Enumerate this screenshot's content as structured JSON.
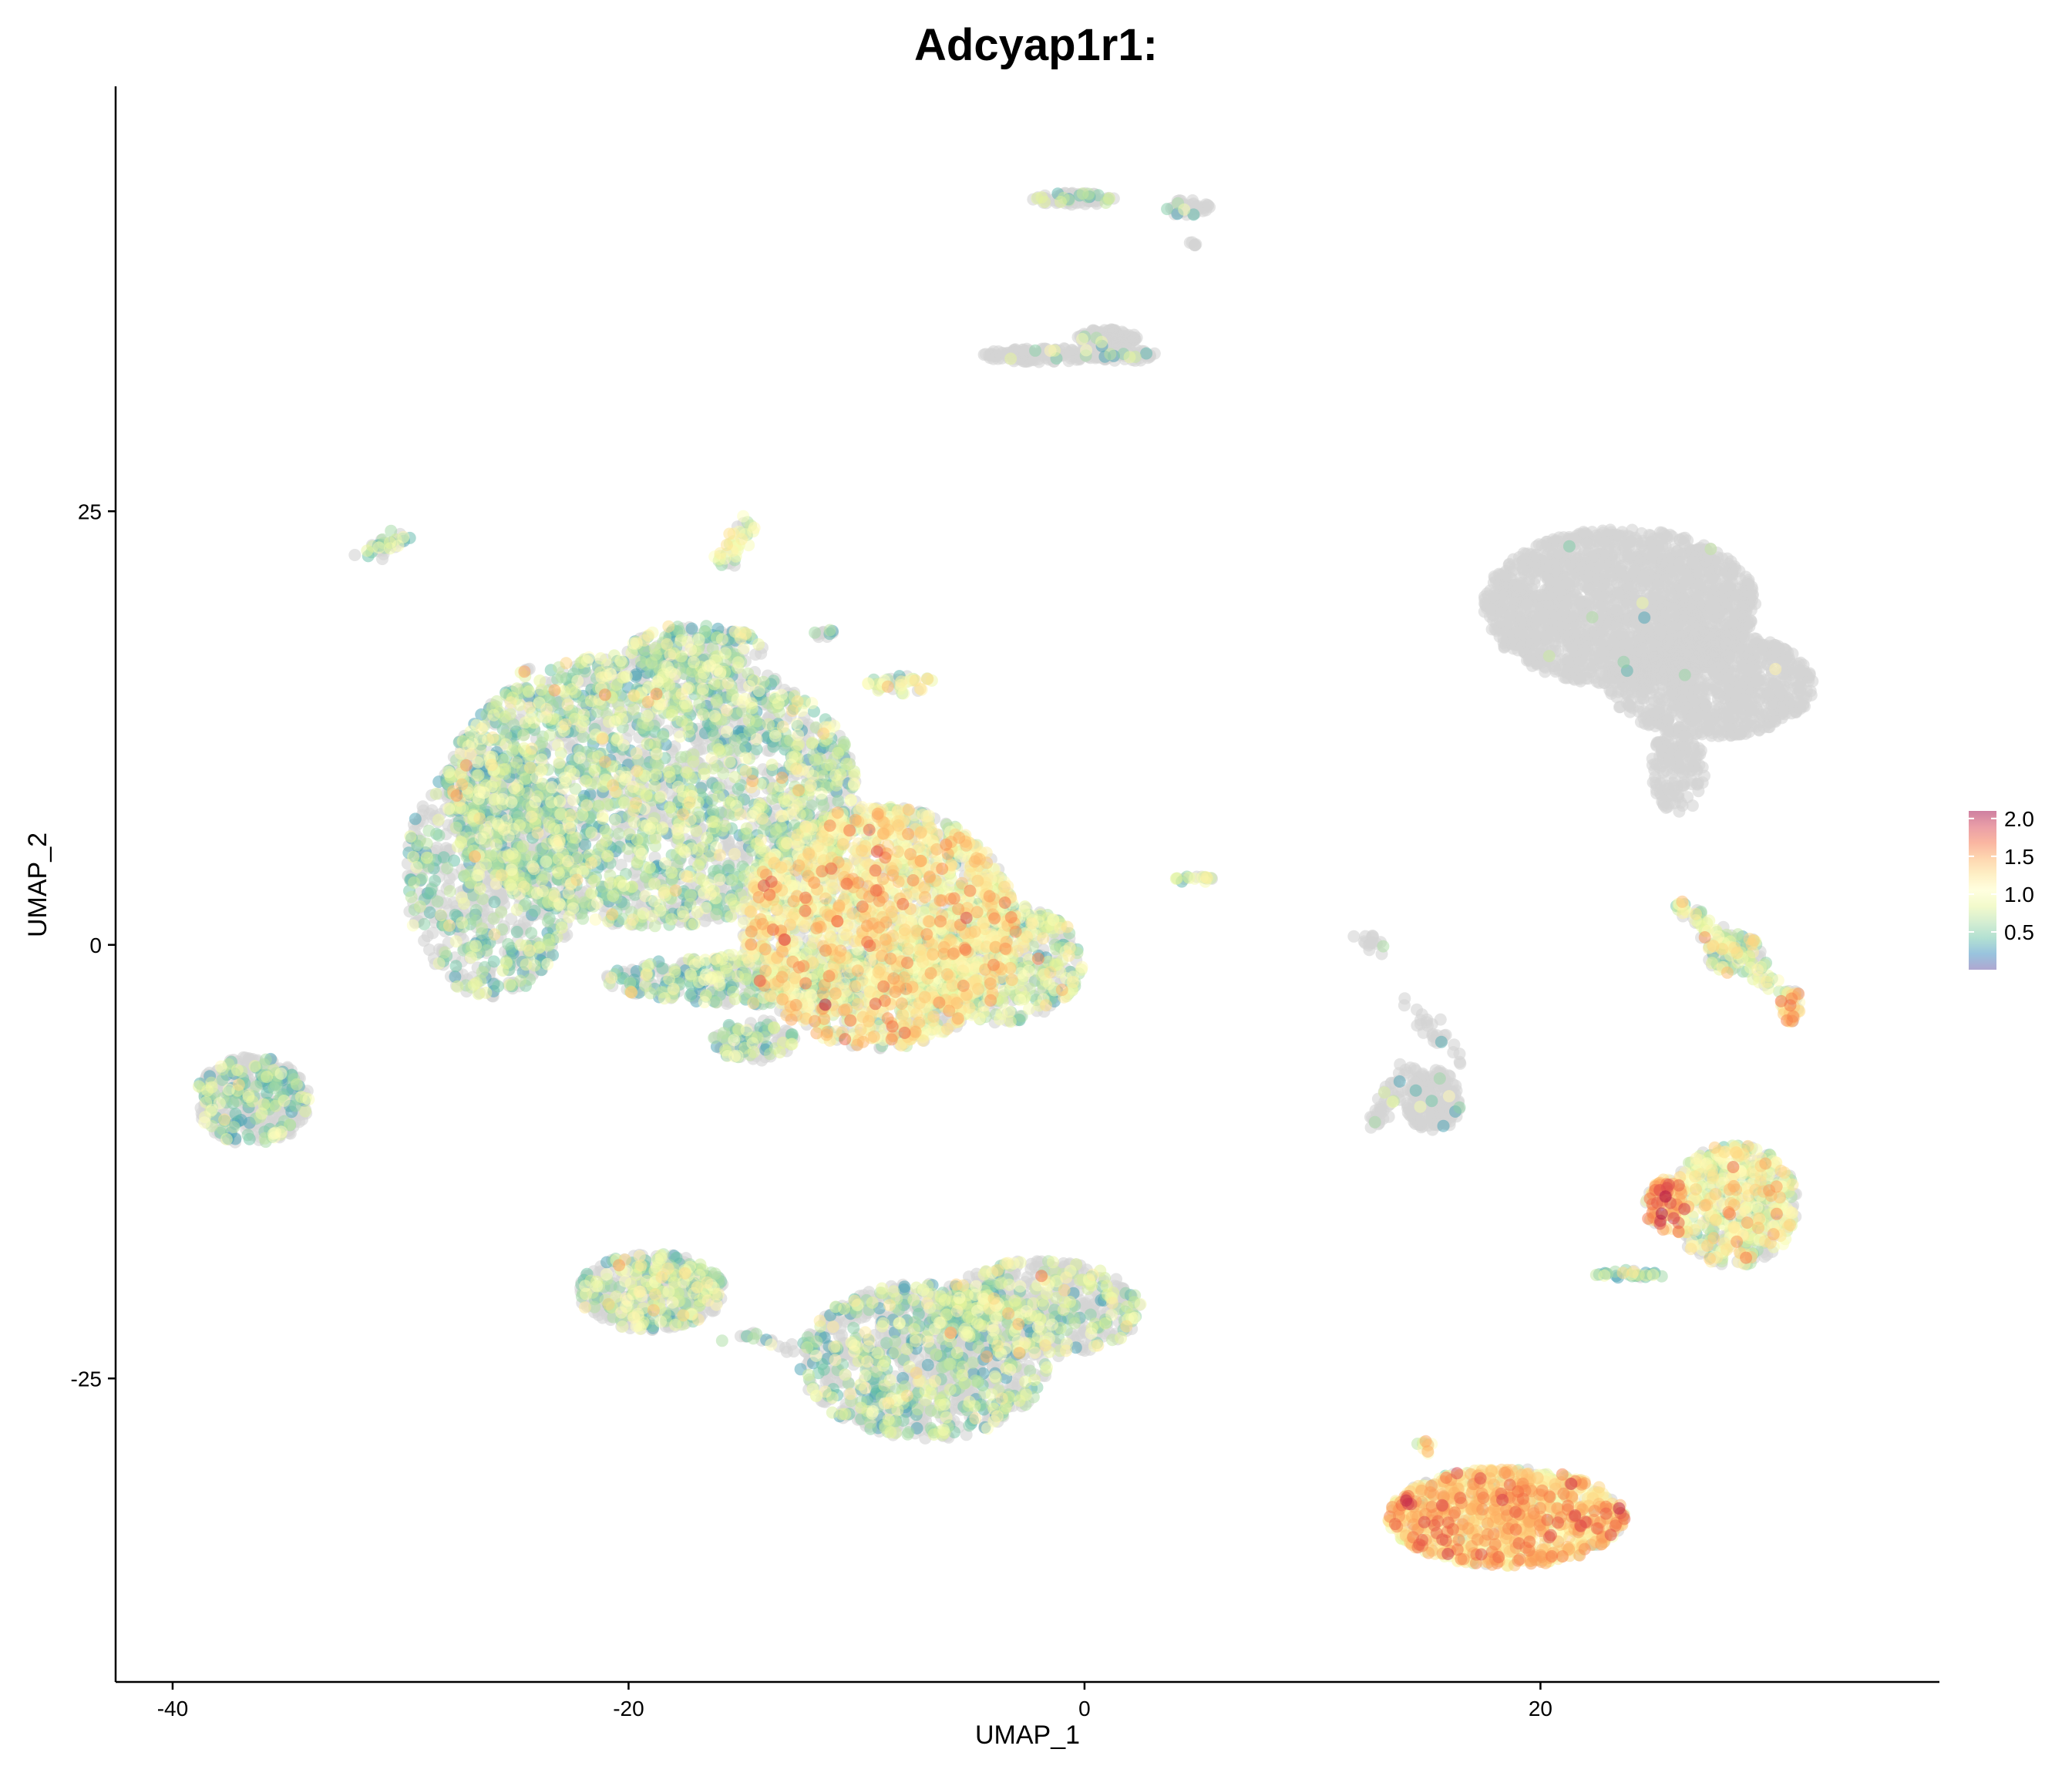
{
  "chart_data": {
    "type": "scatter",
    "title": "Adcyap1r1:",
    "xlabel": "UMAP_1",
    "ylabel": "UMAP_2",
    "xlim": [
      -42.5,
      37.5
    ],
    "ylim": [
      -42.5,
      49.5
    ],
    "x_ticks": [
      -40,
      -20,
      0,
      20
    ],
    "x_tick_labels": [
      "-40",
      "-20",
      "0",
      "20"
    ],
    "y_ticks": [
      -25,
      0,
      25
    ],
    "y_tick_labels": [
      "-25",
      "0",
      "25"
    ],
    "grid": false,
    "colorbar": {
      "label": "",
      "range": [
        0,
        2.1
      ],
      "ticks": [
        0.5,
        1.0,
        1.5,
        2.0
      ],
      "tick_labels": [
        "0.5",
        "1.0",
        "1.5",
        "2.0"
      ],
      "colors": [
        "#5e4fa2",
        "#3288bd",
        "#66c2a5",
        "#abdda4",
        "#e6f598",
        "#ffffbf",
        "#fee08b",
        "#fdae61",
        "#f46d43",
        "#d53e4f",
        "#9e0142"
      ],
      "placement": "right"
    },
    "zero_color": "#d3d3d3",
    "clusters": [
      {
        "cx": -19,
        "cy": 9,
        "rx": 9,
        "ry": 8,
        "n": 2600,
        "expr_frac": 0.55,
        "mean": 0.65
      },
      {
        "cx": -26,
        "cy": 4,
        "rx": 3.8,
        "ry": 7,
        "n": 900,
        "expr_frac": 0.45,
        "mean": 0.6
      },
      {
        "cx": -9,
        "cy": 1,
        "rx": 6,
        "ry": 7,
        "n": 2400,
        "expr_frac": 0.7,
        "mean": 1.05
      },
      {
        "cx": -4,
        "cy": -1,
        "rx": 4,
        "ry": 3.5,
        "n": 600,
        "expr_frac": 0.6,
        "mean": 0.8
      },
      {
        "cx": -13,
        "cy": -2,
        "rx": 8,
        "ry": 1.5,
        "n": 600,
        "expr_frac": 0.5,
        "mean": 0.6
      },
      {
        "cx": -14.5,
        "cy": -5.5,
        "rx": 1.8,
        "ry": 1.2,
        "n": 120,
        "expr_frac": 0.5,
        "mean": 0.6
      },
      {
        "cx": -17,
        "cy": 17,
        "rx": 3,
        "ry": 1.5,
        "n": 180,
        "expr_frac": 0.6,
        "mean": 0.6
      },
      {
        "cx": -36.5,
        "cy": -9,
        "rx": 2.5,
        "ry": 2.6,
        "n": 400,
        "expr_frac": 0.35,
        "mean": 0.6
      },
      {
        "cx": -19,
        "cy": -20,
        "rx": 3.2,
        "ry": 2.2,
        "n": 500,
        "expr_frac": 0.45,
        "mean": 0.75
      },
      {
        "cx": -7,
        "cy": -24,
        "rx": 5.5,
        "ry": 4.5,
        "n": 1100,
        "expr_frac": 0.4,
        "mean": 0.65
      },
      {
        "cx": -2,
        "cy": -21,
        "rx": 4.5,
        "ry": 2.8,
        "n": 600,
        "expr_frac": 0.4,
        "mean": 0.75
      },
      {
        "cx": 18.5,
        "cy": -33,
        "rx": 5.2,
        "ry": 2.8,
        "n": 1300,
        "expr_frac": 0.85,
        "mean": 1.2
      },
      {
        "cx": 28.5,
        "cy": -15,
        "rx": 2.8,
        "ry": 3.5,
        "n": 600,
        "expr_frac": 0.7,
        "mean": 0.95
      },
      {
        "cx": 25.5,
        "cy": -15,
        "rx": 0.9,
        "ry": 1.6,
        "n": 100,
        "expr_frac": 0.8,
        "mean": 1.4
      },
      {
        "cx": 23.5,
        "cy": 19.5,
        "rx": 6,
        "ry": 4.5,
        "n": 2000,
        "expr_frac": 0.003,
        "mean": 0.7
      },
      {
        "cx": 27.5,
        "cy": 15,
        "rx": 4.5,
        "ry": 3,
        "n": 900,
        "expr_frac": 0.003,
        "mean": 0.7
      },
      {
        "cx": 26,
        "cy": 10,
        "rx": 1.2,
        "ry": 2.5,
        "n": 150,
        "expr_frac": 0.0,
        "mean": 0.7
      },
      {
        "cx": 15.3,
        "cy": -9,
        "rx": 1.2,
        "ry": 1.8,
        "n": 200,
        "expr_frac": 0.03,
        "mean": 0.6
      },
      {
        "cx": 1,
        "cy": 35,
        "rx": 1.3,
        "ry": 0.5,
        "n": 150,
        "expr_frac": 0.04,
        "mean": 0.6
      },
      {
        "cx": -1.5,
        "cy": 34,
        "rx": 3,
        "ry": 0.4,
        "n": 150,
        "expr_frac": 0.04,
        "mean": 0.6
      },
      {
        "cx": 1.8,
        "cy": 34,
        "rx": 1.4,
        "ry": 0.35,
        "n": 50,
        "expr_frac": 0.05,
        "mean": 0.6
      },
      {
        "cx": -0.5,
        "cy": 43,
        "rx": 1.8,
        "ry": 0.35,
        "n": 80,
        "expr_frac": 0.2,
        "mean": 0.6
      },
      {
        "cx": 4.5,
        "cy": 42.5,
        "rx": 1,
        "ry": 0.45,
        "n": 50,
        "expr_frac": 0.15,
        "mean": 0.6
      },
      {
        "cx": 4.8,
        "cy": 40.5,
        "rx": 0.2,
        "ry": 0.2,
        "n": 6,
        "expr_frac": 0.0,
        "mean": 0.6
      },
      {
        "cx": -16.8,
        "cy": 15,
        "rx": 0.6,
        "ry": 0.6,
        "n": 18,
        "expr_frac": 0.2,
        "mean": 0.6
      },
      {
        "cx": -11.5,
        "cy": 18,
        "rx": 0.5,
        "ry": 0.3,
        "n": 12,
        "expr_frac": 0.4,
        "mean": 0.6
      },
      {
        "cx": 4.8,
        "cy": 3.8,
        "rx": 0.8,
        "ry": 0.2,
        "n": 18,
        "expr_frac": 0.6,
        "mean": 0.8
      },
      {
        "cx": 12.5,
        "cy": 0.3,
        "rx": 0.3,
        "ry": 0.3,
        "n": 8,
        "expr_frac": 0.1,
        "mean": 0.6
      },
      {
        "cx": 28.5,
        "cy": -0.5,
        "rx": 1.2,
        "ry": 1.2,
        "n": 90,
        "expr_frac": 0.6,
        "mean": 0.75
      },
      {
        "cx": 31,
        "cy": -3.5,
        "rx": 0.5,
        "ry": 1,
        "n": 50,
        "expr_frac": 0.7,
        "mean": 1.2
      },
      {
        "cx": -24.5,
        "cy": 15.7,
        "rx": 0.3,
        "ry": 0.3,
        "n": 6,
        "expr_frac": 0.5,
        "mean": 0.8
      },
      {
        "cx": -8,
        "cy": 15,
        "rx": 1.6,
        "ry": 0.6,
        "n": 40,
        "expr_frac": 0.7,
        "mean": 0.9
      },
      {
        "cx": 15,
        "cy": -29,
        "rx": 0.5,
        "ry": 0.4,
        "n": 10,
        "expr_frac": 0.8,
        "mean": 1.0
      },
      {
        "cx": 24,
        "cy": -19,
        "rx": 1.6,
        "ry": 0.25,
        "n": 30,
        "expr_frac": 0.8,
        "mean": 0.6
      }
    ],
    "segments": [
      {
        "x1": -31.5,
        "y1": 22.5,
        "x2": -30.0,
        "y2": 23.5,
        "n": 40,
        "expr_frac": 0.5,
        "mean": 0.6
      },
      {
        "x1": -16.0,
        "y1": 22.0,
        "x2": -14.5,
        "y2": 24.4,
        "n": 40,
        "expr_frac": 0.8,
        "mean": 0.8
      },
      {
        "x1": 26.0,
        "y1": 2.5,
        "x2": 30.5,
        "y2": -2.5,
        "n": 80,
        "expr_frac": 0.7,
        "mean": 0.8
      },
      {
        "x1": 14.0,
        "y1": -3.0,
        "x2": 16.5,
        "y2": -7.0,
        "n": 30,
        "expr_frac": 0.05,
        "mean": 0.6
      },
      {
        "x1": 14.3,
        "y1": -7.0,
        "x2": 12.5,
        "y2": -10.5,
        "n": 50,
        "expr_frac": 0.1,
        "mean": 0.6
      },
      {
        "x1": -15.5,
        "y1": -22.5,
        "x2": -9.0,
        "y2": -24.0,
        "n": 40,
        "expr_frac": 0.3,
        "mean": 0.6
      },
      {
        "x1": 12.3,
        "y1": 0.5,
        "x2": 12.8,
        "y2": 0.0,
        "n": 8,
        "expr_frac": 0.1,
        "mean": 0.6
      }
    ]
  }
}
